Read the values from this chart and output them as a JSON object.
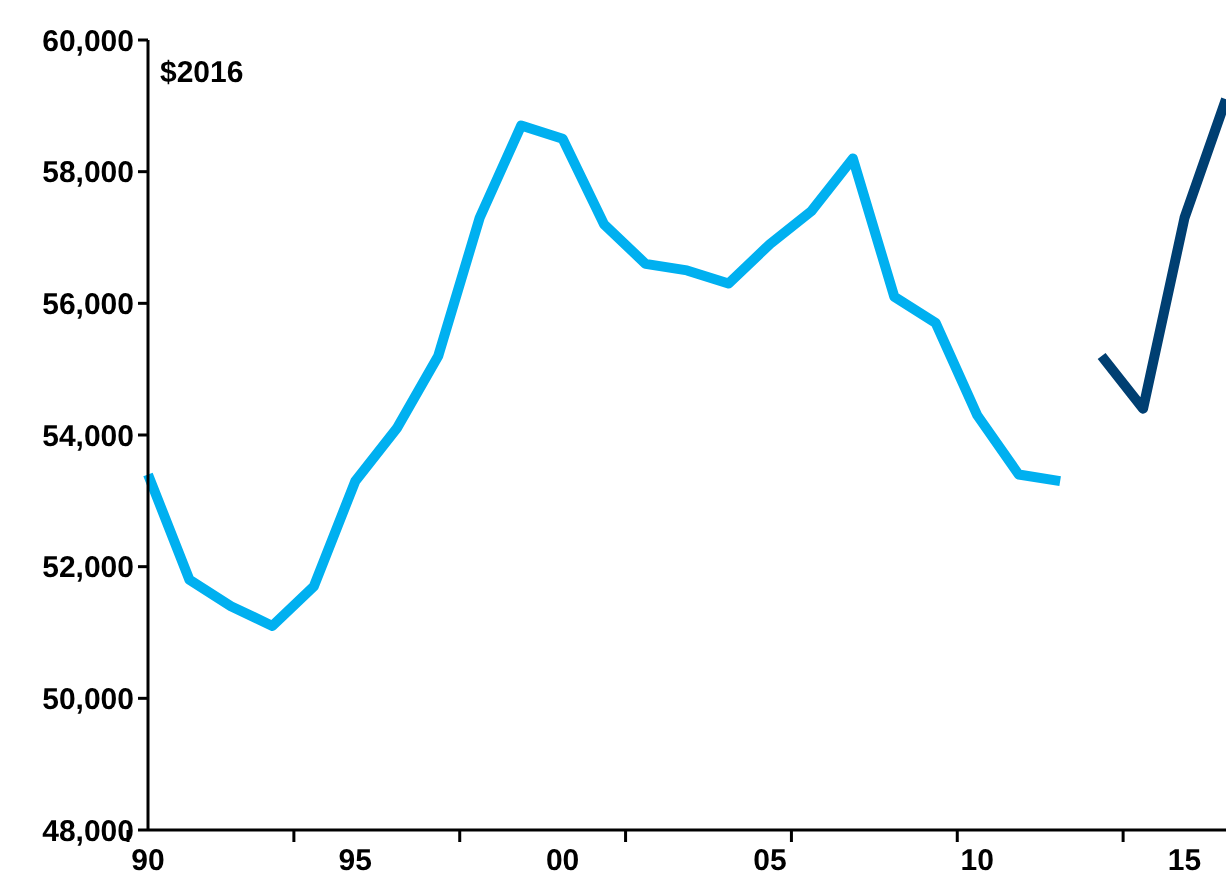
{
  "chart_data": {
    "type": "line",
    "annotations": [
      "$2016"
    ],
    "categories": [
      "90",
      null,
      null,
      null,
      null,
      "95",
      null,
      null,
      null,
      null,
      "00",
      null,
      null,
      null,
      null,
      "05",
      null,
      null,
      null,
      null,
      "10",
      null,
      null,
      null,
      null,
      "15",
      null
    ],
    "ylim": [
      48000,
      60000
    ],
    "yticks": [
      {
        "value": 48000,
        "label": "48,000"
      },
      {
        "value": 50000,
        "label": "50,000"
      },
      {
        "value": 52000,
        "label": "52,000"
      },
      {
        "value": 54000,
        "label": "54,000"
      },
      {
        "value": 56000,
        "label": "56,000"
      },
      {
        "value": 58000,
        "label": "58,000"
      },
      {
        "value": 60000,
        "label": "60,000"
      }
    ],
    "grid": false,
    "legend": false,
    "marker": "none",
    "line_style": "solid",
    "series": [
      {
        "color": "#00b0f0",
        "values": [
          53400,
          51800,
          51400,
          51100,
          51700,
          53300,
          54100,
          55200,
          57300,
          58700,
          58500,
          57200,
          56600,
          56500,
          56300,
          56900,
          57400,
          58200,
          56100,
          55700,
          54300,
          53400,
          53300,
          null,
          null,
          null,
          null
        ]
      },
      {
        "color": "#003f72",
        "values": [
          null,
          null,
          null,
          null,
          null,
          null,
          null,
          null,
          null,
          null,
          null,
          null,
          null,
          null,
          null,
          null,
          null,
          null,
          null,
          null,
          null,
          null,
          null,
          55200,
          54400,
          57300,
          59100
        ]
      }
    ]
  }
}
